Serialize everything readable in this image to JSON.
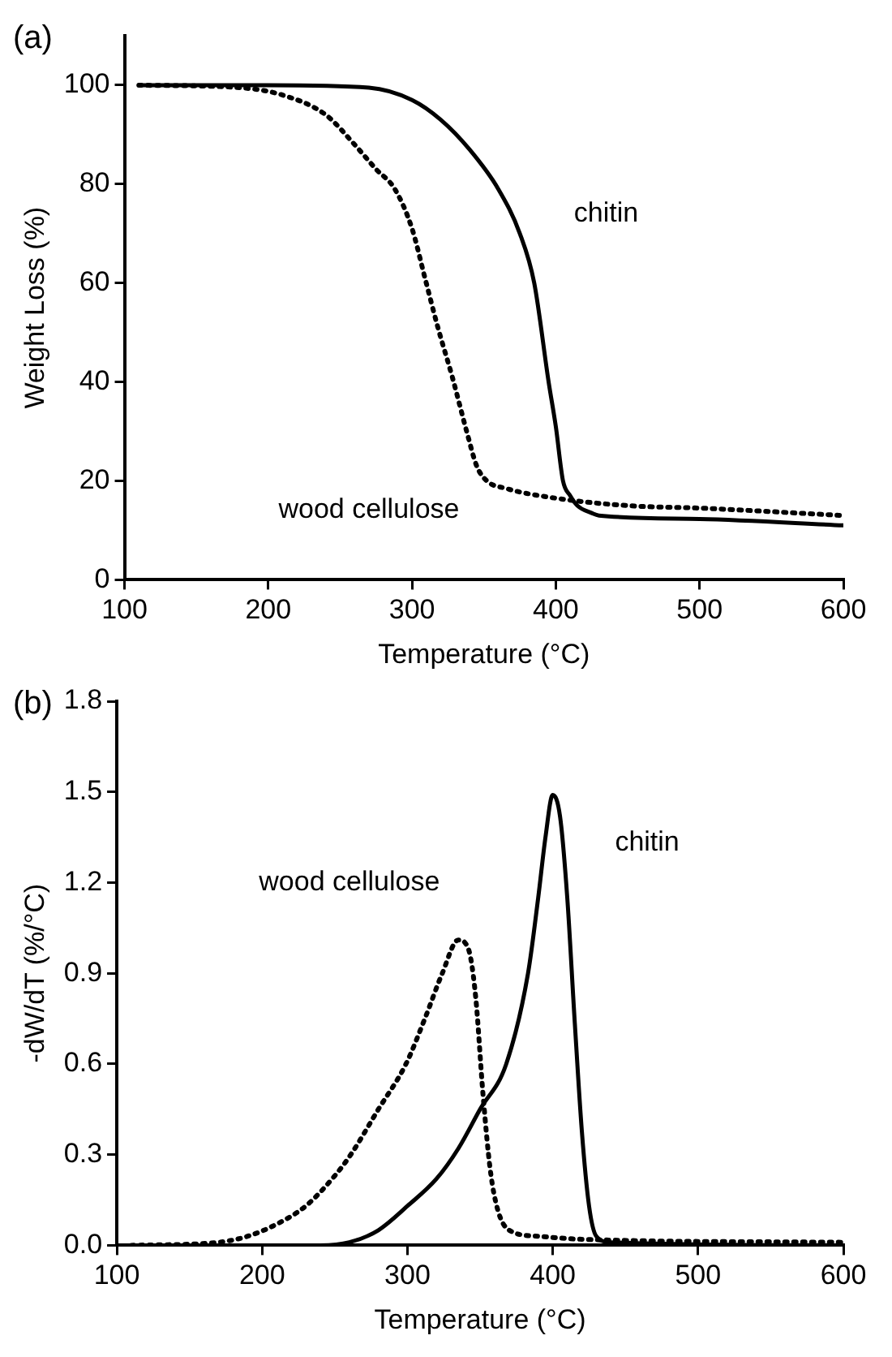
{
  "chart_data": [
    {
      "type": "line",
      "title": "(a)",
      "xlabel": "Temperature (°C)",
      "ylabel": "Weight Loss (%)",
      "xlim": [
        100,
        600
      ],
      "xticks": [
        100,
        200,
        300,
        400,
        500,
        600
      ],
      "ylim": [
        0,
        110
      ],
      "yticks": [
        0,
        20,
        40,
        60,
        80,
        100
      ],
      "grid": false,
      "legend": false,
      "marker": "none",
      "series": [
        {
          "name": "chitin",
          "color": "#000000",
          "line_style": "solid",
          "x": [
            110,
            200,
            270,
            300,
            320,
            340,
            360,
            375,
            385,
            395,
            400,
            405,
            410,
            415,
            425,
            430,
            500,
            600
          ],
          "values": [
            100,
            100,
            99.5,
            97,
            93,
            87,
            79,
            70,
            60,
            40,
            31,
            20,
            17,
            15,
            13.5,
            13,
            12.3,
            11
          ]
        },
        {
          "name": "wood cellulose",
          "color": "#000000",
          "line_style": "dotted",
          "x": [
            110,
            180,
            210,
            240,
            260,
            275,
            288,
            300,
            309,
            318,
            328,
            338,
            345,
            352,
            365,
            400,
            450,
            500,
            600
          ],
          "values": [
            100,
            99.5,
            98,
            94,
            88,
            83,
            79,
            71,
            61,
            51,
            41,
            30,
            23,
            20,
            18.5,
            16.5,
            15,
            14.5,
            13
          ]
        }
      ]
    },
    {
      "type": "line",
      "title": "(b)",
      "xlabel": "Temperature (°C)",
      "ylabel": "-dW/dT (%/°C)",
      "xlim": [
        100,
        600
      ],
      "xticks": [
        100,
        200,
        300,
        400,
        500,
        600
      ],
      "ylim": [
        0,
        1.8
      ],
      "yticks": [
        {
          "value": 0,
          "label": "0.0"
        },
        0.3,
        0.6,
        0.9,
        1.2,
        1.5,
        1.8
      ],
      "grid": false,
      "legend": false,
      "marker": "none",
      "series": [
        {
          "name": "chitin",
          "color": "#000000",
          "line_style": "solid",
          "x": [
            110,
            240,
            260,
            280,
            300,
            320,
            335,
            350,
            368,
            383,
            390,
            395,
            400,
            405,
            410,
            415,
            420,
            425,
            430,
            440,
            600
          ],
          "values": [
            0,
            0,
            0.01,
            0.05,
            0.13,
            0.22,
            0.32,
            0.45,
            0.6,
            0.9,
            1.15,
            1.35,
            1.49,
            1.42,
            1.15,
            0.75,
            0.38,
            0.13,
            0.03,
            0.01,
            0
          ]
        },
        {
          "name": "wood cellulose",
          "color": "#000000",
          "line_style": "dotted",
          "x": [
            110,
            170,
            190,
            210,
            230,
            250,
            261,
            280,
            299,
            312,
            324,
            335,
            342,
            347,
            352,
            357,
            362,
            370,
            390,
            420,
            600
          ],
          "values": [
            0,
            0.01,
            0.03,
            0.07,
            0.13,
            0.23,
            0.3,
            0.45,
            0.6,
            0.75,
            0.9,
            1.01,
            0.98,
            0.82,
            0.5,
            0.25,
            0.12,
            0.05,
            0.03,
            0.02,
            0.01
          ]
        }
      ]
    }
  ]
}
